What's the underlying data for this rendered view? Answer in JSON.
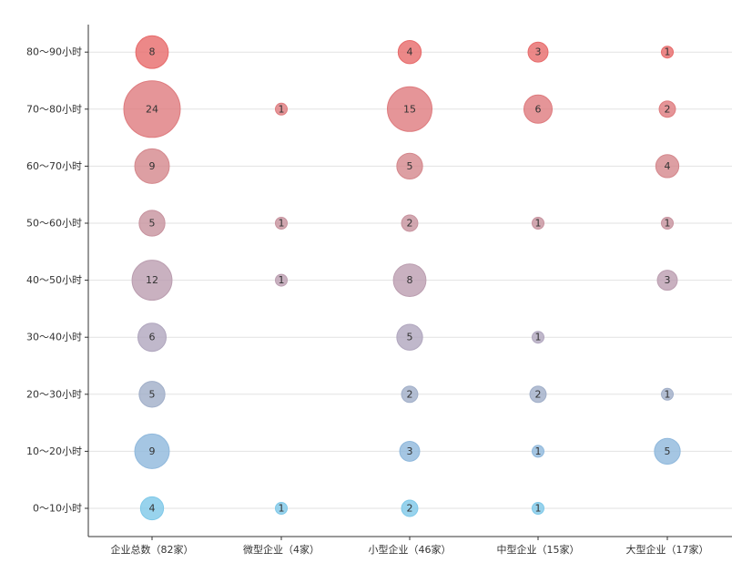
{
  "chart_data": {
    "type": "scatter",
    "subtype": "bubble",
    "title": "",
    "xlabel": "",
    "ylabel": "",
    "grid": "horizontal",
    "legend": "none",
    "categories": [
      "企业总数（82家）",
      "微型企业（4家）",
      "小型企业（46家）",
      "中型企业（15家）",
      "大型企业（17家）"
    ],
    "y_categories": [
      "0～10小时",
      "10～20小时",
      "20～30小时",
      "30～40小时",
      "40～50小时",
      "50～60小时",
      "60～70小时",
      "70～80小时",
      "80～90小时"
    ],
    "colors": [
      "#7ec8e8",
      "#8fb8dc",
      "#a0aec8",
      "#b0a6be",
      "#bb9eb0",
      "#c7929e",
      "#d4878c",
      "#de7b7e",
      "#e76a6a"
    ],
    "points": [
      {
        "x": 0,
        "y": 0,
        "value": 4
      },
      {
        "x": 1,
        "y": 0,
        "value": 1
      },
      {
        "x": 2,
        "y": 0,
        "value": 2
      },
      {
        "x": 3,
        "y": 0,
        "value": 1
      },
      {
        "x": 0,
        "y": 1,
        "value": 9
      },
      {
        "x": 2,
        "y": 1,
        "value": 3
      },
      {
        "x": 3,
        "y": 1,
        "value": 1
      },
      {
        "x": 4,
        "y": 1,
        "value": 5
      },
      {
        "x": 0,
        "y": 2,
        "value": 5
      },
      {
        "x": 2,
        "y": 2,
        "value": 2
      },
      {
        "x": 3,
        "y": 2,
        "value": 2
      },
      {
        "x": 4,
        "y": 2,
        "value": 1
      },
      {
        "x": 0,
        "y": 3,
        "value": 6
      },
      {
        "x": 2,
        "y": 3,
        "value": 5
      },
      {
        "x": 3,
        "y": 3,
        "value": 1
      },
      {
        "x": 0,
        "y": 4,
        "value": 12
      },
      {
        "x": 1,
        "y": 4,
        "value": 1
      },
      {
        "x": 2,
        "y": 4,
        "value": 8
      },
      {
        "x": 4,
        "y": 4,
        "value": 3
      },
      {
        "x": 0,
        "y": 5,
        "value": 5
      },
      {
        "x": 1,
        "y": 5,
        "value": 1
      },
      {
        "x": 2,
        "y": 5,
        "value": 2
      },
      {
        "x": 3,
        "y": 5,
        "value": 1
      },
      {
        "x": 4,
        "y": 5,
        "value": 1
      },
      {
        "x": 0,
        "y": 6,
        "value": 9
      },
      {
        "x": 2,
        "y": 6,
        "value": 5
      },
      {
        "x": 4,
        "y": 6,
        "value": 4
      },
      {
        "x": 0,
        "y": 7,
        "value": 24
      },
      {
        "x": 1,
        "y": 7,
        "value": 1
      },
      {
        "x": 2,
        "y": 7,
        "value": 15
      },
      {
        "x": 3,
        "y": 7,
        "value": 6
      },
      {
        "x": 4,
        "y": 7,
        "value": 2
      },
      {
        "x": 0,
        "y": 8,
        "value": 8
      },
      {
        "x": 2,
        "y": 8,
        "value": 4
      },
      {
        "x": 3,
        "y": 8,
        "value": 3
      },
      {
        "x": 4,
        "y": 8,
        "value": 1
      }
    ]
  }
}
